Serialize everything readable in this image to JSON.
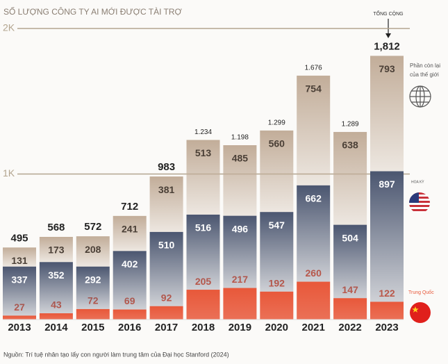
{
  "chart_data": {
    "type": "stacked_bar",
    "title": "SỐ LƯỢNG CÔNG TY AI MỚI ĐƯỢC TÀI TRỢ",
    "categories": [
      "2013",
      "2014",
      "2015",
      "2016",
      "2017",
      "2018",
      "2019",
      "2020",
      "2021",
      "2022",
      "2023"
    ],
    "series": [
      {
        "name": "Trung Quốc",
        "color": "#e8583a",
        "values": [
          27,
          43,
          72,
          69,
          92,
          205,
          217,
          192,
          260,
          147,
          122
        ]
      },
      {
        "name": "HOA KỲ",
        "color": "#4b5670",
        "values": [
          337,
          352,
          292,
          402,
          510,
          516,
          496,
          547,
          662,
          504,
          897
        ]
      },
      {
        "name": "Phần còn lại của thế giới",
        "color": "#c2ad99",
        "values": [
          131,
          173,
          208,
          241,
          381,
          513,
          485,
          560,
          754,
          638,
          793
        ]
      }
    ],
    "totals": {
      "values": [
        495,
        568,
        572,
        712,
        983,
        1234,
        1198,
        1299,
        1676,
        1289,
        1812
      ],
      "value_labels": [
        "495",
        "568",
        "572",
        "712",
        "983",
        "1.234",
        "1.198",
        "1.299",
        "1.676",
        "1.289",
        "1,812"
      ]
    },
    "annotation": "TỔNG CỘNG",
    "ylim": [
      0,
      2000
    ],
    "yticks": [
      {
        "value": 1000,
        "label": "1K"
      },
      {
        "value": 2000,
        "label": "2K"
      }
    ],
    "grid": true,
    "source": "Nguồn: Trí tuệ nhân tạo lấy con người làm trung tâm của Đại học Stanford (2024)"
  }
}
